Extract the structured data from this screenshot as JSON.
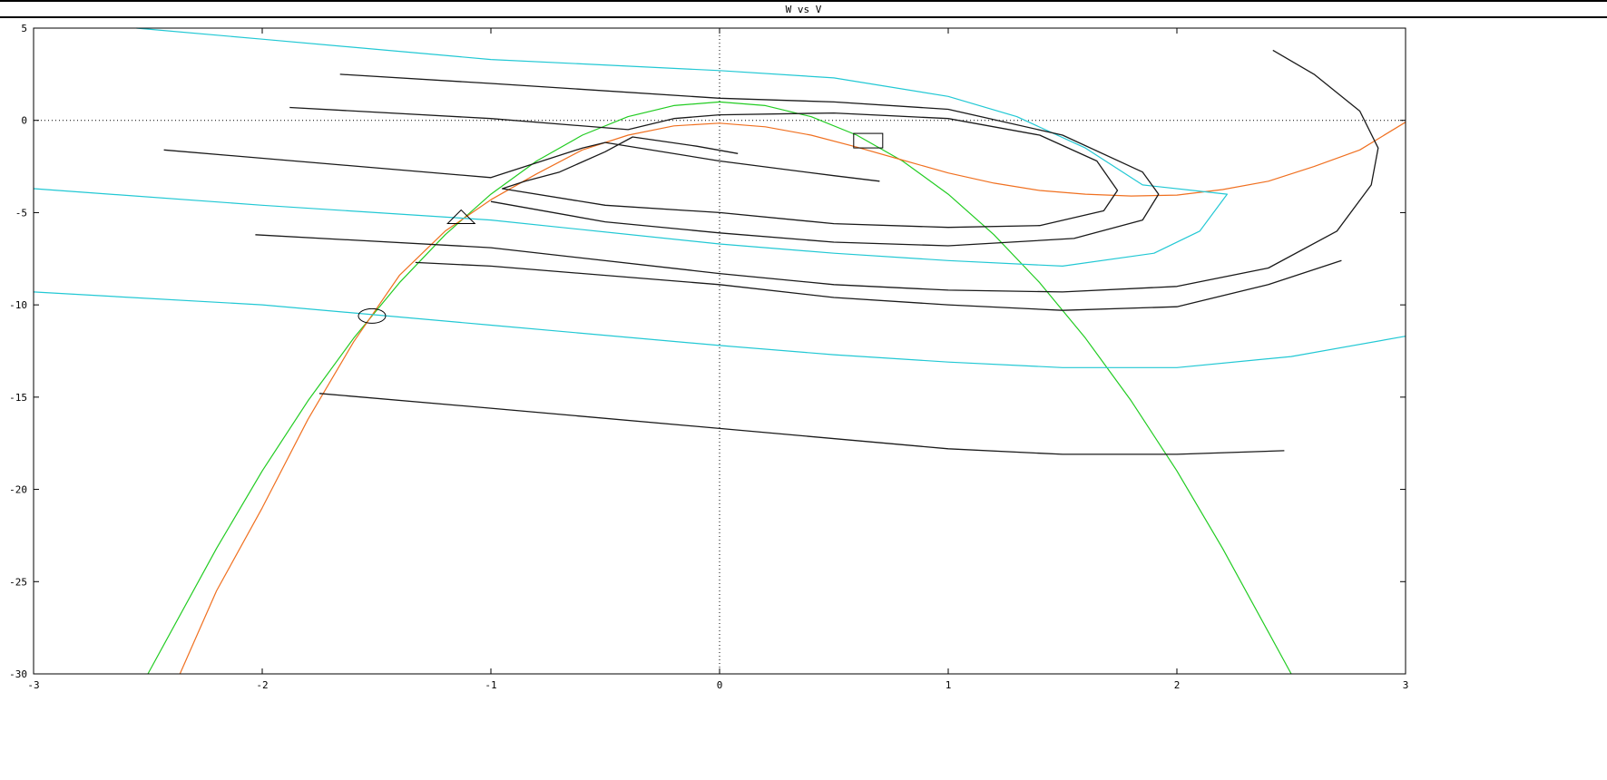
{
  "window": {
    "title": "W vs V"
  },
  "chart_data": {
    "type": "line",
    "title": "W vs V",
    "xlabel": "",
    "ylabel": "",
    "xlim": [
      -3,
      3
    ],
    "ylim": [
      -30,
      5
    ],
    "xticks": [
      "-3",
      "-2",
      "-1",
      "0",
      "1",
      "2",
      "3"
    ],
    "yticks": [
      "5",
      "0",
      "-5",
      "-10",
      "-15",
      "-20",
      "-25",
      "-30"
    ],
    "zero_lines": "dotted",
    "colors": {
      "trajectory": "#1a1a1a",
      "cyan": "#22c8d4",
      "green": "#22cc22",
      "orange": "#f07020",
      "axis": "#000000"
    },
    "series": [
      {
        "color": "green",
        "points": [
          [
            -2.5,
            -30
          ],
          [
            -2.2,
            -23.2
          ],
          [
            -2.0,
            -19.0
          ],
          [
            -1.8,
            -15.2
          ],
          [
            -1.6,
            -11.8
          ],
          [
            -1.4,
            -8.8
          ],
          [
            -1.2,
            -6.2
          ],
          [
            -1.0,
            -4.0
          ],
          [
            -0.8,
            -2.2
          ],
          [
            -0.6,
            -0.8
          ],
          [
            -0.4,
            0.2
          ],
          [
            -0.2,
            0.8
          ],
          [
            0.0,
            1.0
          ],
          [
            0.2,
            0.8
          ],
          [
            0.4,
            0.2
          ],
          [
            0.6,
            -0.8
          ],
          [
            0.8,
            -2.2
          ],
          [
            1.0,
            -4.0
          ],
          [
            1.2,
            -6.2
          ],
          [
            1.4,
            -8.8
          ],
          [
            1.6,
            -11.8
          ],
          [
            1.8,
            -15.2
          ],
          [
            2.0,
            -19.0
          ],
          [
            2.2,
            -23.2
          ],
          [
            2.5,
            -30
          ]
        ]
      },
      {
        "color": "orange",
        "points": [
          [
            -2.36,
            -30
          ],
          [
            -2.2,
            -25.5
          ],
          [
            -2.0,
            -21.0
          ],
          [
            -1.8,
            -16.2
          ],
          [
            -1.6,
            -12.0
          ],
          [
            -1.4,
            -8.4
          ],
          [
            -1.2,
            -6.0
          ],
          [
            -1.0,
            -4.3
          ],
          [
            -0.8,
            -2.9
          ],
          [
            -0.6,
            -1.6
          ],
          [
            -0.4,
            -0.8
          ],
          [
            -0.2,
            -0.3
          ],
          [
            0.0,
            -0.15
          ],
          [
            0.2,
            -0.35
          ],
          [
            0.4,
            -0.8
          ],
          [
            0.6,
            -1.45
          ],
          [
            0.8,
            -2.15
          ],
          [
            1.0,
            -2.85
          ],
          [
            1.2,
            -3.4
          ],
          [
            1.4,
            -3.8
          ],
          [
            1.6,
            -4.0
          ],
          [
            1.8,
            -4.1
          ],
          [
            2.0,
            -4.05
          ],
          [
            2.2,
            -3.75
          ],
          [
            2.4,
            -3.3
          ],
          [
            2.6,
            -2.5
          ],
          [
            2.8,
            -1.6
          ],
          [
            3.0,
            -0.1
          ]
        ]
      },
      {
        "color": "cyan",
        "points": [
          [
            -2.55,
            5
          ],
          [
            -2.0,
            4.4
          ],
          [
            -1.0,
            3.3
          ],
          [
            0.0,
            2.7
          ],
          [
            0.5,
            2.3
          ],
          [
            1.0,
            1.3
          ],
          [
            1.3,
            0.2
          ],
          [
            1.6,
            -1.5
          ],
          [
            1.85,
            -3.5
          ],
          [
            2.22,
            -4.0
          ],
          [
            2.1,
            -6.0
          ],
          [
            1.9,
            -7.2
          ],
          [
            1.5,
            -7.9
          ],
          [
            1.0,
            -7.6
          ],
          [
            0.5,
            -7.2
          ],
          [
            0.0,
            -6.7
          ],
          [
            -1.0,
            -5.4
          ],
          [
            -2.0,
            -4.6
          ],
          [
            -3.0,
            -3.7
          ]
        ]
      },
      {
        "color": "cyan",
        "points": [
          [
            -3.0,
            -9.3
          ],
          [
            -2.0,
            -10.0
          ],
          [
            -1.0,
            -11.1
          ],
          [
            0.0,
            -12.2
          ],
          [
            0.5,
            -12.7
          ],
          [
            1.0,
            -13.1
          ],
          [
            1.5,
            -13.4
          ],
          [
            2.0,
            -13.4
          ],
          [
            2.5,
            -12.8
          ],
          [
            3.0,
            -11.7
          ]
        ]
      },
      {
        "color": "trajectory",
        "points": [
          [
            -1.66,
            2.5
          ],
          [
            -1.0,
            2.0
          ],
          [
            0.0,
            1.2
          ],
          [
            0.5,
            1.0
          ],
          [
            1.0,
            0.6
          ],
          [
            1.5,
            -0.8
          ],
          [
            1.85,
            -2.8
          ],
          [
            1.92,
            -4.0
          ],
          [
            1.85,
            -5.4
          ],
          [
            1.55,
            -6.4
          ],
          [
            1.0,
            -6.8
          ],
          [
            0.5,
            -6.6
          ],
          [
            0.0,
            -6.1
          ],
          [
            -0.5,
            -5.5
          ],
          [
            -1.0,
            -4.4
          ]
        ]
      },
      {
        "color": "trajectory",
        "points": [
          [
            -1.88,
            0.7
          ],
          [
            -1.0,
            0.1
          ],
          [
            -0.4,
            -0.5
          ],
          [
            -0.2,
            0.1
          ],
          [
            0.0,
            0.3
          ],
          [
            0.5,
            0.4
          ],
          [
            1.0,
            0.1
          ],
          [
            1.4,
            -0.8
          ],
          [
            1.65,
            -2.2
          ],
          [
            1.74,
            -3.8
          ],
          [
            1.68,
            -4.9
          ],
          [
            1.4,
            -5.7
          ],
          [
            1.0,
            -5.8
          ],
          [
            0.5,
            -5.6
          ],
          [
            0.0,
            -5.0
          ],
          [
            -0.5,
            -4.6
          ],
          [
            -0.95,
            -3.7
          ],
          [
            -0.85,
            -3.3
          ],
          [
            -0.7,
            -2.8
          ],
          [
            -0.5,
            -1.7
          ],
          [
            -0.38,
            -0.9
          ],
          [
            -0.1,
            -1.4
          ],
          [
            0.08,
            -1.8
          ]
        ]
      },
      {
        "color": "trajectory",
        "points": [
          [
            -2.43,
            -1.6
          ],
          [
            -1.0,
            -3.1
          ],
          [
            -0.6,
            -1.5
          ],
          [
            -0.5,
            -1.2
          ],
          [
            0.0,
            -2.2
          ],
          [
            0.5,
            -3.0
          ],
          [
            0.7,
            -3.3
          ]
        ]
      },
      {
        "color": "trajectory",
        "points": [
          [
            -2.03,
            -6.2
          ],
          [
            -1.0,
            -6.9
          ],
          [
            0.0,
            -8.3
          ],
          [
            0.5,
            -8.9
          ],
          [
            1.0,
            -9.2
          ],
          [
            1.5,
            -9.3
          ],
          [
            2.0,
            -9.0
          ],
          [
            2.4,
            -8.0
          ],
          [
            2.7,
            -6.0
          ],
          [
            2.85,
            -3.5
          ],
          [
            2.88,
            -1.5
          ],
          [
            2.8,
            0.5
          ],
          [
            2.6,
            2.5
          ],
          [
            2.42,
            3.8
          ]
        ]
      },
      {
        "color": "trajectory",
        "points": [
          [
            -1.33,
            -7.7
          ],
          [
            -1.0,
            -7.9
          ],
          [
            0.0,
            -8.9
          ],
          [
            0.5,
            -9.6
          ],
          [
            1.0,
            -10.0
          ],
          [
            1.5,
            -10.3
          ],
          [
            2.0,
            -10.1
          ],
          [
            2.4,
            -8.9
          ],
          [
            2.72,
            -7.6
          ]
        ]
      },
      {
        "color": "trajectory",
        "points": [
          [
            -1.75,
            -14.8
          ],
          [
            -1.0,
            -15.6
          ],
          [
            0.0,
            -16.7
          ],
          [
            1.0,
            -17.8
          ],
          [
            1.5,
            -18.1
          ],
          [
            2.0,
            -18.1
          ],
          [
            2.47,
            -17.9
          ]
        ]
      }
    ],
    "markers": [
      {
        "shape": "triangle",
        "x": -1.13,
        "y": -5.3
      },
      {
        "shape": "ellipse",
        "x": -1.52,
        "y": -10.6
      },
      {
        "shape": "square",
        "x": 0.65,
        "y": -1.1
      }
    ]
  }
}
